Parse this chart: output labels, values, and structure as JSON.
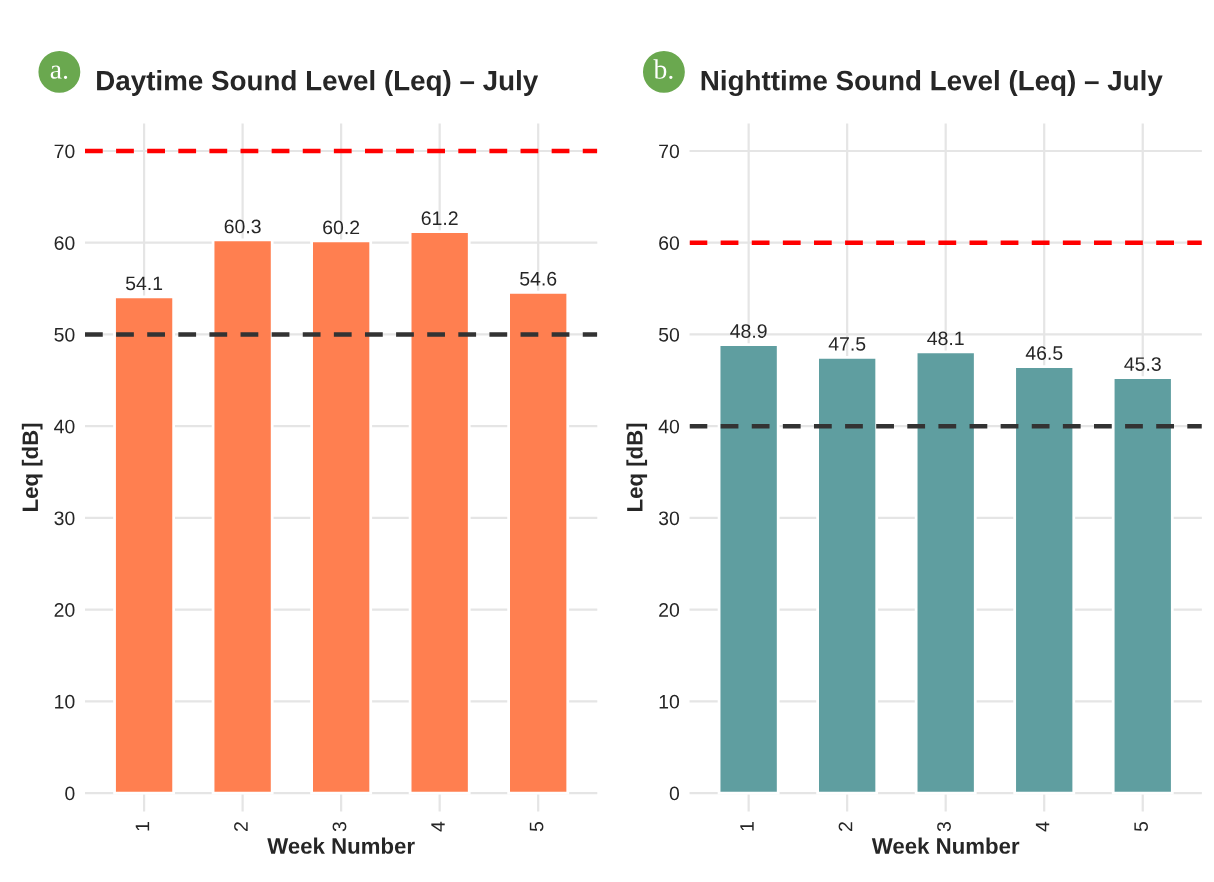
{
  "chart_data": [
    {
      "type": "bar",
      "title": "Daytime Sound Level (Leq) – July",
      "annotations": [
        "a."
      ],
      "xlabel": "Week Number",
      "ylabel": "Leq [dB]",
      "categories": [
        "1",
        "2",
        "3",
        "4",
        "5"
      ],
      "values": [
        54.1,
        60.3,
        60.2,
        61.2,
        54.6
      ],
      "color": "#ff7f50",
      "data_labels": true,
      "ylim": [
        -2,
        73
      ],
      "yticks": [
        0,
        10,
        20,
        30,
        40,
        50,
        60,
        70
      ],
      "grid": true,
      "ref_lines": [
        {
          "axis": "y",
          "value": 70,
          "color": "#ff0000",
          "line_style": "dashed"
        },
        {
          "axis": "y",
          "value": 50,
          "color": "#333333",
          "line_style": "dashed"
        }
      ]
    },
    {
      "type": "bar",
      "title": "Nighttime Sound Level (Leq) – July",
      "annotations": [
        "b."
      ],
      "xlabel": "Week Number",
      "ylabel": "Leq [dB]",
      "categories": [
        "1",
        "2",
        "3",
        "4",
        "5"
      ],
      "values": [
        48.9,
        47.5,
        48.1,
        46.5,
        45.3
      ],
      "color": "#5f9ea0",
      "data_labels": true,
      "ylim": [
        -2,
        73
      ],
      "yticks": [
        0,
        10,
        20,
        30,
        40,
        50,
        60,
        70
      ],
      "grid": true,
      "ref_lines": [
        {
          "axis": "y",
          "value": 60,
          "color": "#ff0000",
          "line_style": "dashed"
        },
        {
          "axis": "y",
          "value": 40,
          "color": "#333333",
          "line_style": "dashed"
        }
      ]
    }
  ]
}
